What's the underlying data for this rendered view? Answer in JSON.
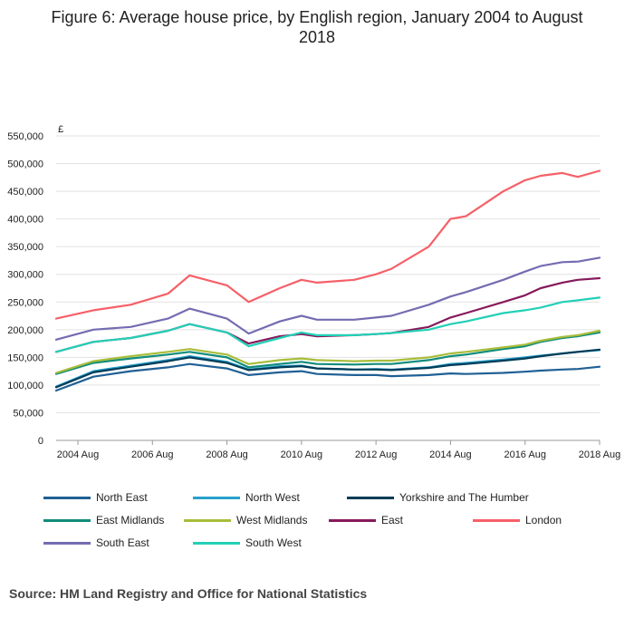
{
  "title": "Figure 6: Average house price, by English region, January 2004 to August 2018",
  "source": "Source: HM Land Registry and Office for National Statistics",
  "chart_data": {
    "type": "line",
    "title": "Figure 6: Average house price, by English region, January 2004 to August 2018",
    "ylabel": "£",
    "xlabel": "",
    "ylim": [
      0,
      550000
    ],
    "yticks": [
      0,
      50000,
      100000,
      150000,
      200000,
      250000,
      300000,
      350000,
      400000,
      450000,
      500000,
      550000
    ],
    "ytick_labels": [
      "0",
      "50,000",
      "100,000",
      "150,000",
      "200,000",
      "250,000",
      "300,000",
      "350,000",
      "400,000",
      "450,000",
      "500,000",
      "550,000"
    ],
    "xlim": [
      "2004-01",
      "2018-08"
    ],
    "xticks": [
      "2004-08",
      "2006-08",
      "2008-08",
      "2010-08",
      "2012-08",
      "2014-08",
      "2016-08",
      "2018-08"
    ],
    "xtick_labels": [
      "2004 Aug",
      "2006 Aug",
      "2008 Aug",
      "2010 Aug",
      "2012 Aug",
      "2014 Aug",
      "2016 Aug",
      "2018 Aug"
    ],
    "grid": "horizontal",
    "legend": "bottom",
    "x": [
      "2004-01",
      "2005-01",
      "2006-01",
      "2007-01",
      "2007-08",
      "2008-08",
      "2009-03",
      "2010-01",
      "2010-08",
      "2011-01",
      "2012-01",
      "2012-08",
      "2013-01",
      "2014-01",
      "2014-08",
      "2015-01",
      "2016-01",
      "2016-08",
      "2017-01",
      "2017-08",
      "2018-01",
      "2018-08"
    ],
    "series": [
      {
        "name": "North East",
        "color": "#206095",
        "values": [
          90000,
          115000,
          125000,
          132000,
          138000,
          130000,
          118000,
          123000,
          125000,
          120000,
          118000,
          118000,
          116000,
          118000,
          121000,
          120000,
          122000,
          124000,
          126000,
          128000,
          129000,
          133000
        ]
      },
      {
        "name": "North West",
        "color": "#27a0cc",
        "values": [
          97000,
          125000,
          135000,
          145000,
          152000,
          142000,
          128000,
          134000,
          135000,
          130000,
          128000,
          129000,
          128000,
          132000,
          138000,
          140000,
          146000,
          150000,
          153000,
          157000,
          160000,
          163000
        ]
      },
      {
        "name": "Yorkshire and The Humber",
        "color": "#003c57",
        "values": [
          96000,
          123000,
          133000,
          143000,
          150000,
          140000,
          127000,
          132000,
          134000,
          130000,
          128000,
          128000,
          127000,
          131000,
          136000,
          138000,
          144000,
          148000,
          152000,
          157000,
          160000,
          164000
        ]
      },
      {
        "name": "East Midlands",
        "color": "#118c7b",
        "values": [
          120000,
          140000,
          148000,
          155000,
          160000,
          150000,
          132000,
          138000,
          142000,
          138000,
          137000,
          138000,
          138000,
          145000,
          152000,
          155000,
          165000,
          170000,
          178000,
          185000,
          188000,
          195000
        ]
      },
      {
        "name": "West Midlands",
        "color": "#a8bd3a",
        "values": [
          122000,
          143000,
          152000,
          160000,
          165000,
          155000,
          138000,
          145000,
          148000,
          145000,
          143000,
          144000,
          144000,
          150000,
          157000,
          160000,
          168000,
          173000,
          180000,
          187000,
          190000,
          198000
        ]
      },
      {
        "name": "East",
        "color": "#871a5b",
        "values": [
          160000,
          178000,
          185000,
          198000,
          210000,
          195000,
          175000,
          188000,
          192000,
          188000,
          190000,
          192000,
          194000,
          205000,
          222000,
          230000,
          250000,
          262000,
          275000,
          285000,
          290000,
          293000
        ]
      },
      {
        "name": "London",
        "color": "#f66068",
        "values": [
          220000,
          235000,
          245000,
          265000,
          298000,
          280000,
          250000,
          275000,
          290000,
          285000,
          290000,
          300000,
          310000,
          350000,
          400000,
          405000,
          450000,
          470000,
          478000,
          483000,
          476000,
          487000
        ]
      },
      {
        "name": "South East",
        "color": "#746cb1",
        "values": [
          182000,
          200000,
          205000,
          220000,
          238000,
          220000,
          193000,
          215000,
          225000,
          218000,
          218000,
          222000,
          225000,
          245000,
          260000,
          268000,
          290000,
          305000,
          315000,
          322000,
          323000,
          330000
        ]
      },
      {
        "name": "South West",
        "color": "#22d0b6",
        "values": [
          160000,
          178000,
          185000,
          198000,
          210000,
          195000,
          170000,
          185000,
          195000,
          190000,
          190000,
          192000,
          194000,
          200000,
          210000,
          215000,
          230000,
          235000,
          240000,
          250000,
          253000,
          258000
        ]
      }
    ]
  }
}
